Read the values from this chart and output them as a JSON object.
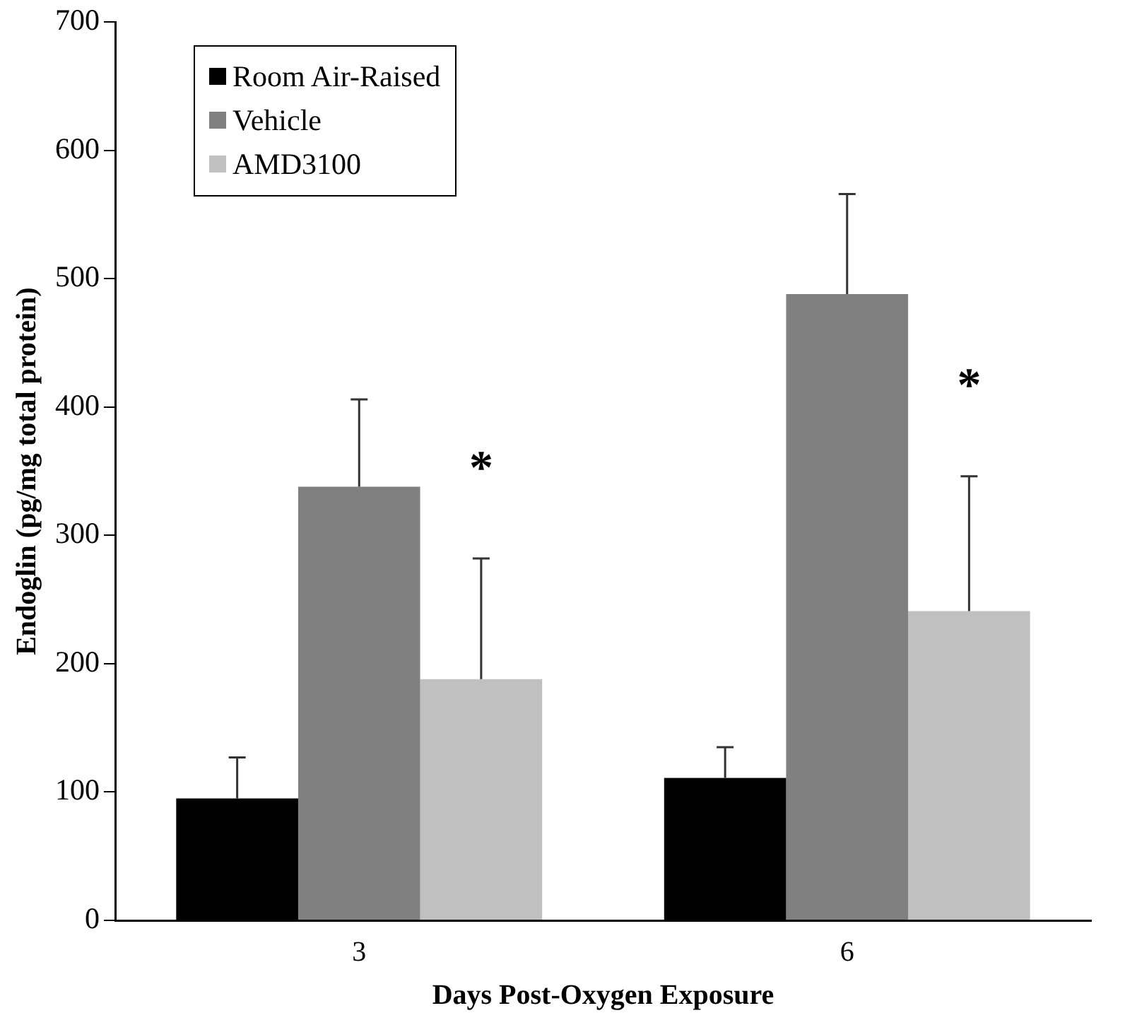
{
  "chart_data": {
    "type": "bar",
    "xlabel": "Days Post-Oxygen Exposure",
    "ylabel": "Endoglin (pg/mg total protein)",
    "categories": [
      "3",
      "6"
    ],
    "series": [
      {
        "name": "Room Air-Raised",
        "color": "#000000",
        "values": [
          95,
          111
        ],
        "errors": [
          [
            95,
            127
          ],
          [
            111,
            135
          ]
        ]
      },
      {
        "name": "Vehicle",
        "color": "#808080",
        "values": [
          338,
          488
        ],
        "errors": [
          [
            338,
            406
          ],
          [
            488,
            566
          ]
        ]
      },
      {
        "name": "AMD3100",
        "color": "#c0c0c0",
        "values": [
          188,
          241
        ],
        "errors": [
          [
            188,
            282
          ],
          [
            241,
            346
          ]
        ]
      }
    ],
    "ylim": [
      0,
      700
    ],
    "yticks": [
      0,
      100,
      200,
      300,
      400,
      500,
      600,
      700
    ],
    "grid": false,
    "legend": "top left",
    "annotations": [
      "*",
      "*"
    ]
  }
}
